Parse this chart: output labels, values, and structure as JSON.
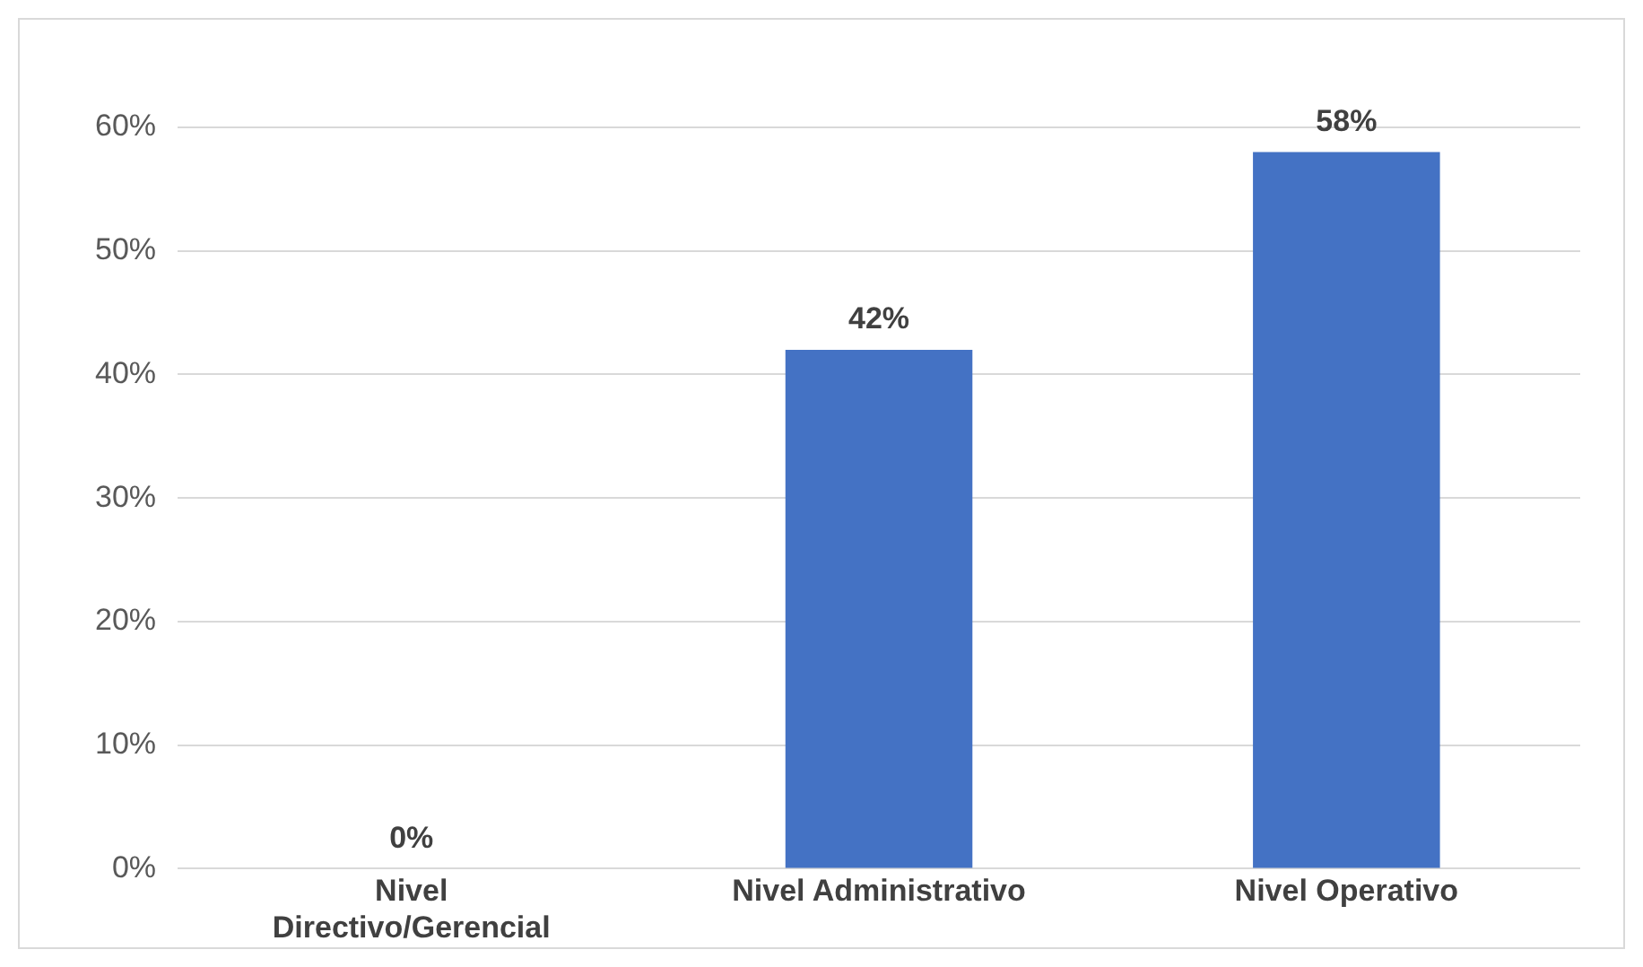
{
  "chart_data": {
    "type": "bar",
    "categories": [
      "Nivel Directivo/Gerencial",
      "Nivel Administrativo",
      "Nivel Operativo"
    ],
    "values": [
      0,
      42,
      58
    ],
    "color": "#4472c4",
    "ylim": [
      0,
      60
    ],
    "yticks": [
      {
        "value": 0,
        "label": "0%"
      },
      {
        "value": 10,
        "label": "10%"
      },
      {
        "value": 20,
        "label": "20%"
      },
      {
        "value": 30,
        "label": "30%"
      },
      {
        "value": 40,
        "label": "40%"
      },
      {
        "value": 50,
        "label": "50%"
      },
      {
        "value": 60,
        "label": "60%"
      }
    ],
    "value_labels": [
      "0%",
      "42%",
      "58%"
    ],
    "grid": "y"
  }
}
